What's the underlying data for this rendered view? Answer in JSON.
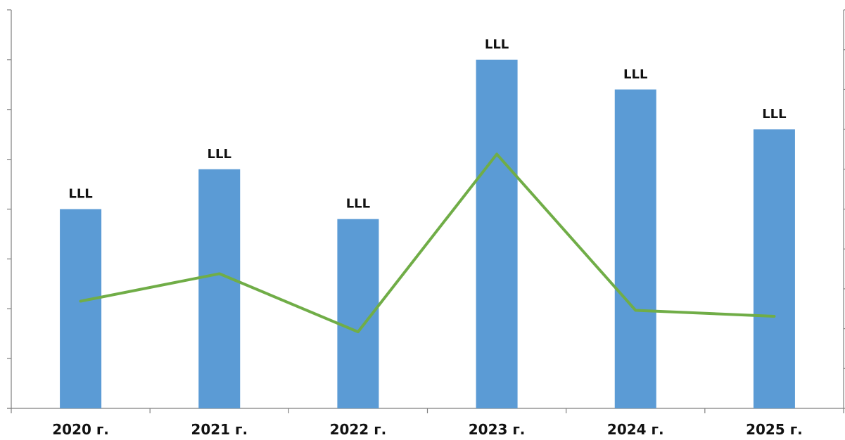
{
  "chart_data": {
    "type": "bar",
    "categories": [
      "2020 г.",
      "2021 г.",
      "2022 г.",
      "2023 г.",
      "2024 г.",
      "2025 г."
    ],
    "series": [
      {
        "type": "bar",
        "values": [
          40,
          48,
          38,
          70,
          64,
          56
        ],
        "data_labels": [
          "LLL",
          "LLL",
          "LLL",
          "LLL",
          "LLL",
          "LLL"
        ],
        "color": "#5b9bd5"
      },
      {
        "type": "line",
        "values": [
          26.9,
          33.8,
          19.2,
          63.8,
          24.6,
          23.1
        ],
        "color": "#70ad47"
      }
    ],
    "ylim": [
      0,
      80
    ],
    "y2lim": [
      0,
      100
    ],
    "title": "",
    "xlabel": "",
    "ylabel": "",
    "legend": "none",
    "grid": false,
    "axis_color": "#7f7f7f"
  }
}
